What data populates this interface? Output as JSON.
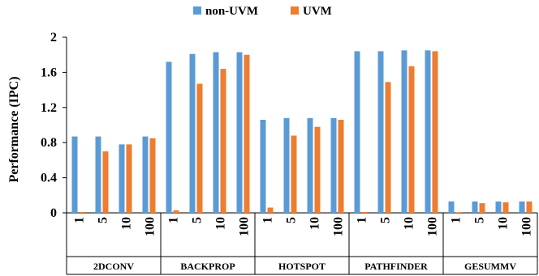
{
  "chart_data": {
    "type": "bar",
    "title": "",
    "xlabel": "",
    "ylabel": "Performance (IPC)",
    "ylim": [
      0,
      2
    ],
    "yticks": [
      "0",
      "0.4",
      "0.8",
      "1.2",
      "1.6",
      "2"
    ],
    "grid": false,
    "legend_position": "top-center",
    "groups": [
      "2DCONV",
      "BACKPROP",
      "HOTSPOT",
      "PATHFINDER",
      "GESUMMV"
    ],
    "subcategories": [
      "1",
      "5",
      "10",
      "100"
    ],
    "series": [
      {
        "name": "non-UVM",
        "color": "#5B9BD5",
        "values": [
          [
            0.87,
            0.87,
            0.78,
            0.87
          ],
          [
            1.72,
            1.81,
            1.83,
            1.83
          ],
          [
            1.06,
            1.08,
            1.08,
            1.08
          ],
          [
            1.84,
            1.84,
            1.85,
            1.85
          ],
          [
            0.13,
            0.13,
            0.13,
            0.13
          ]
        ]
      },
      {
        "name": "UVM",
        "color": "#ED7D31",
        "values": [
          [
            0.01,
            0.7,
            0.78,
            0.85
          ],
          [
            0.03,
            1.47,
            1.64,
            1.8
          ],
          [
            0.06,
            0.88,
            0.98,
            1.06
          ],
          [
            0.01,
            1.49,
            1.67,
            1.84
          ],
          [
            0.005,
            0.11,
            0.12,
            0.13
          ]
        ]
      }
    ]
  }
}
